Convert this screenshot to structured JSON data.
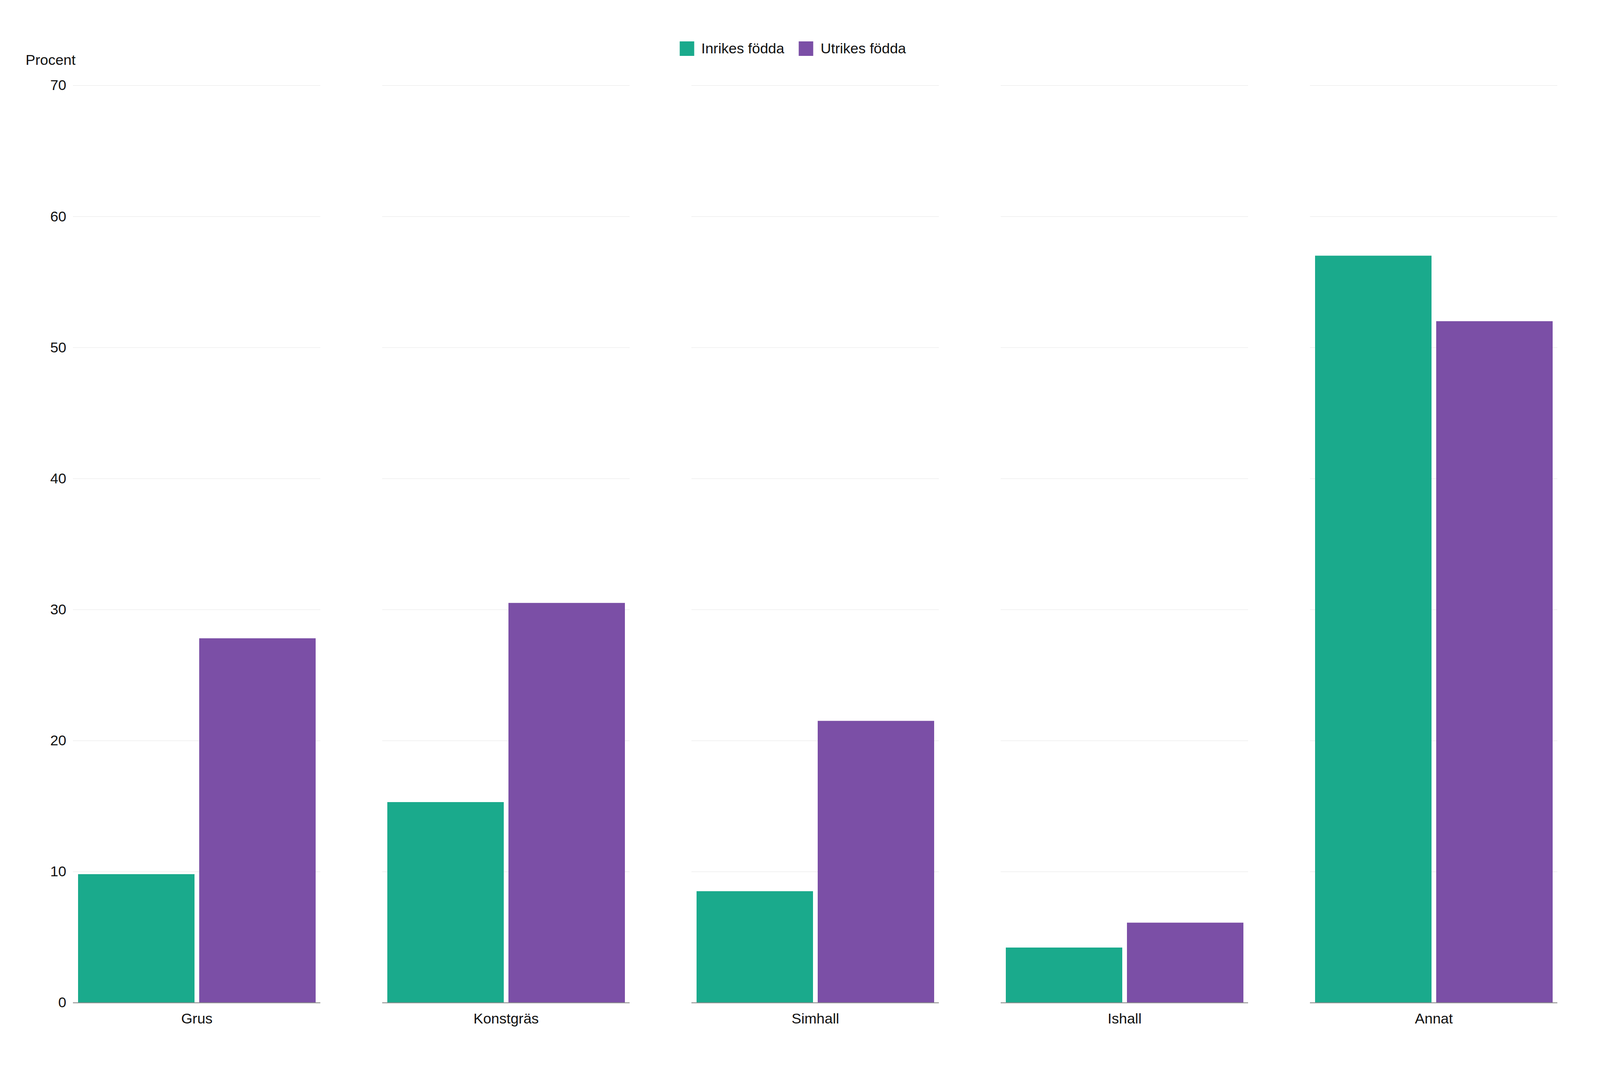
{
  "chart_data": {
    "type": "bar",
    "ylabel": "Procent",
    "categories": [
      "Grus",
      "Konstgräs",
      "Simhall",
      "Ishall",
      "Annat"
    ],
    "series": [
      {
        "name": "Inrikes födda",
        "color": "#1aaa8c",
        "values": [
          9.8,
          15.3,
          8.5,
          4.2,
          57.0
        ]
      },
      {
        "name": "Utrikes födda",
        "color": "#7b4fa6",
        "values": [
          27.8,
          30.5,
          21.5,
          6.1,
          52.0
        ]
      }
    ],
    "ylim": [
      0,
      70
    ],
    "yticks": [
      0,
      10,
      20,
      30,
      40,
      50,
      60,
      70
    ],
    "grid": true,
    "legend": "top"
  }
}
